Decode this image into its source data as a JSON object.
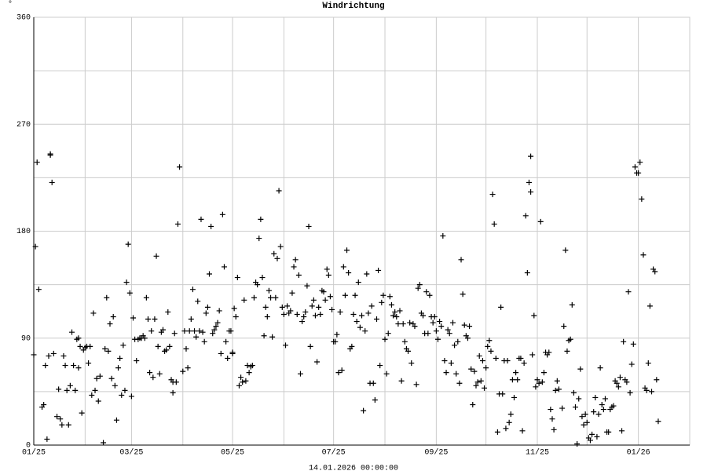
{
  "chart_data": {
    "type": "scatter",
    "title": "Windrichtung",
    "y_label": "°",
    "x_label": "14.01.2026 00:00:00",
    "marker": "+",
    "grid": true,
    "xlim": [
      0,
      396
    ],
    "ylim": [
      0,
      360
    ],
    "xticks": [
      {
        "value": 0,
        "label": "01/25"
      },
      {
        "value": 31,
        "label": null
      },
      {
        "value": 59,
        "label": "03/25"
      },
      {
        "value": 90,
        "label": null
      },
      {
        "value": 120,
        "label": "05/25"
      },
      {
        "value": 151,
        "label": null
      },
      {
        "value": 181,
        "label": "07/25"
      },
      {
        "value": 212,
        "label": null
      },
      {
        "value": 243,
        "label": "09/25"
      },
      {
        "value": 273,
        "label": null
      },
      {
        "value": 304,
        "label": "11/25"
      },
      {
        "value": 334,
        "label": null
      },
      {
        "value": 365,
        "label": "01/26"
      }
    ],
    "yticks": [
      0,
      {
        "value": 45,
        "label": null
      },
      90,
      {
        "value": 135,
        "label": null
      },
      180,
      {
        "value": 225,
        "label": null
      },
      270,
      {
        "value": 315,
        "label": null
      },
      360
    ],
    "series": [
      {
        "color": "#000000",
        "x": [
          0,
          1,
          2,
          3,
          5,
          6,
          7,
          8,
          9,
          10,
          10,
          11,
          12,
          14,
          15,
          16,
          17,
          18,
          19,
          20,
          21,
          22,
          23,
          24,
          25,
          26,
          27,
          27,
          28,
          29,
          30,
          31,
          32,
          33,
          34,
          35,
          36,
          37,
          38,
          39,
          40,
          42,
          43,
          44,
          45,
          46,
          47,
          48,
          49,
          50,
          51,
          52,
          53,
          54,
          55,
          56,
          57,
          58,
          59,
          60,
          61,
          62,
          63,
          64,
          65,
          66,
          67,
          68,
          69,
          70,
          71,
          72,
          73,
          74,
          75,
          76,
          77,
          78,
          79,
          80,
          81,
          82,
          83,
          84,
          84,
          85,
          86,
          87,
          88,
          90,
          91,
          92,
          93,
          94,
          95,
          96,
          97,
          98,
          99,
          100,
          101,
          102,
          103,
          104,
          105,
          106,
          107,
          108,
          109,
          110,
          111,
          112,
          113,
          114,
          115,
          116,
          117,
          118,
          119,
          120,
          120,
          121,
          122,
          123,
          124,
          125,
          126,
          127,
          128,
          129,
          130,
          131,
          132,
          133,
          134,
          135,
          136,
          137,
          138,
          139,
          140,
          141,
          142,
          143,
          144,
          145,
          146,
          147,
          148,
          149,
          150,
          151,
          152,
          153,
          154,
          155,
          156,
          157,
          158,
          159,
          160,
          161,
          162,
          163,
          164,
          165,
          166,
          167,
          168,
          169,
          170,
          171,
          172,
          173,
          174,
          175,
          176,
          177,
          178,
          179,
          180,
          181,
          182,
          183,
          184,
          185,
          186,
          187,
          188,
          189,
          190,
          191,
          192,
          193,
          194,
          195,
          196,
          197,
          198,
          199,
          200,
          201,
          202,
          203,
          204,
          205,
          206,
          207,
          208,
          209,
          210,
          211,
          212,
          213,
          214,
          215,
          216,
          217,
          218,
          219,
          220,
          221,
          222,
          223,
          224,
          225,
          226,
          227,
          228,
          229,
          230,
          231,
          232,
          233,
          234,
          235,
          236,
          237,
          238,
          239,
          240,
          241,
          242,
          243,
          244,
          245,
          246,
          247,
          248,
          249,
          250,
          251,
          252,
          253,
          254,
          255,
          256,
          257,
          258,
          259,
          260,
          261,
          262,
          263,
          264,
          265,
          266,
          267,
          268,
          269,
          270,
          271,
          272,
          273,
          274,
          275,
          276,
          277,
          278,
          279,
          280,
          281,
          282,
          283,
          284,
          285,
          286,
          287,
          288,
          289,
          290,
          291,
          292,
          293,
          294,
          295,
          296,
          297,
          298,
          299,
          300,
          300,
          301,
          302,
          303,
          304,
          305,
          306,
          307,
          308,
          309,
          310,
          311,
          312,
          313,
          314,
          315,
          316,
          317,
          319,
          320,
          321,
          322,
          323,
          324,
          325,
          326,
          327,
          328,
          329,
          330,
          331,
          332,
          333,
          334,
          335,
          336,
          337,
          338,
          339,
          340,
          341,
          342,
          343,
          344,
          345,
          346,
          347,
          348,
          349,
          350,
          351,
          352,
          353,
          354,
          355,
          356,
          357,
          358,
          359,
          360,
          361,
          362,
          363,
          364,
          365,
          366,
          367,
          368,
          369,
          370,
          371,
          372,
          373,
          374,
          375,
          376,
          377
        ],
        "values": [
          76,
          167,
          238,
          131,
          32,
          34,
          67,
          5,
          75,
          244,
          245,
          221,
          77,
          24,
          47,
          22,
          17,
          75,
          67,
          46,
          17,
          50,
          95,
          67,
          46,
          89,
          65,
          90,
          83,
          27,
          80,
          82,
          83,
          69,
          83,
          42,
          111,
          46,
          56,
          37,
          58,
          2,
          81,
          124,
          79,
          102,
          56,
          108,
          50,
          21,
          65,
          73,
          42,
          84,
          46,
          137,
          169,
          128,
          41,
          107,
          89,
          71,
          89,
          90,
          90,
          92,
          90,
          124,
          106,
          61,
          96,
          57,
          106,
          159,
          83,
          60,
          95,
          97,
          79,
          80,
          112,
          83,
          55,
          53,
          44,
          94,
          53,
          186,
          234,
          62,
          96,
          81,
          65,
          96,
          106,
          131,
          96,
          91,
          121,
          96,
          190,
          95,
          87,
          111,
          116,
          144,
          184,
          94,
          97,
          100,
          103,
          113,
          77,
          194,
          150,
          87,
          73,
          96,
          96,
          77,
          78,
          115,
          108,
          141,
          50,
          57,
          53,
          122,
          54,
          67,
          61,
          66,
          67,
          124,
          137,
          135,
          174,
          190,
          141,
          92,
          116,
          108,
          130,
          124,
          91,
          161,
          124,
          157,
          214,
          167,
          116,
          110,
          84,
          117,
          111,
          113,
          128,
          150,
          156,
          110,
          143,
          60,
          104,
          108,
          112,
          134,
          184,
          83,
          117,
          122,
          109,
          70,
          116,
          110,
          130,
          129,
          122,
          148,
          143,
          125,
          114,
          87,
          87,
          93,
          61,
          112,
          63,
          150,
          126,
          164,
          145,
          81,
          83,
          110,
          126,
          104,
          137,
          99,
          109,
          29,
          96,
          144,
          111,
          52,
          117,
          52,
          38,
          106,
          147,
          67,
          120,
          126,
          89,
          60,
          94,
          125,
          118,
          109,
          112,
          108,
          102,
          113,
          54,
          102,
          87,
          81,
          79,
          103,
          69,
          102,
          100,
          51,
          132,
          135,
          111,
          109,
          94,
          129,
          94,
          126,
          108,
          103,
          108,
          96,
          89,
          104,
          100,
          176,
          71,
          61,
          97,
          94,
          69,
          103,
          84,
          60,
          87,
          52,
          156,
          127,
          101,
          92,
          90,
          100,
          64,
          34,
          62,
          50,
          53,
          75,
          54,
          71,
          48,
          65,
          83,
          88,
          79,
          211,
          186,
          73,
          11,
          43,
          116,
          43,
          71,
          14,
          71,
          19,
          26,
          55,
          40,
          61,
          55,
          73,
          73,
          12,
          69,
          193,
          145,
          221,
          213,
          243,
          76,
          109,
          49,
          55,
          52,
          188,
          53,
          61,
          78,
          76,
          78,
          30,
          22,
          13,
          46,
          54,
          47,
          31,
          100,
          164,
          79,
          88,
          89,
          118,
          44,
          32,
          1,
          39,
          64,
          24,
          17,
          26,
          19,
          6,
          4,
          9,
          28,
          40,
          7,
          26,
          65,
          34,
          30,
          39,
          11,
          11,
          30,
          32,
          33,
          54,
          52,
          49,
          57,
          12,
          87,
          55,
          53,
          129,
          44,
          68,
          85,
          234,
          229,
          229,
          238,
          207,
          160,
          48,
          46,
          69,
          117,
          45,
          148,
          146,
          55,
          20
        ]
      }
    ]
  }
}
